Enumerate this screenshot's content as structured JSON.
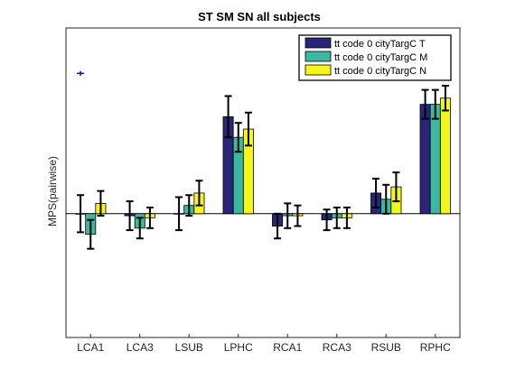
{
  "chart_data": {
    "type": "bar",
    "title": "ST SM SN all subjects",
    "xlabel": "",
    "ylabel": "MPS(pairwise)",
    "categories": [
      "LCA1",
      "LCA3",
      "LSUB",
      "LPHC",
      "RCA1",
      "RCA3",
      "RSUB",
      "RPHC"
    ],
    "ylim": [
      -0.6,
      0.9
    ],
    "grid": false,
    "legend_location": "top-right",
    "series": [
      {
        "name": "tt code 0 cityTargC T",
        "color": "#2b2578",
        "values": [
          0.0,
          -0.01,
          0.0,
          0.47,
          -0.06,
          -0.03,
          0.1,
          0.53
        ],
        "errors": [
          0.09,
          0.07,
          0.08,
          0.1,
          0.06,
          0.05,
          0.07,
          0.07
        ]
      },
      {
        "name": "tt code 0 cityTargC M",
        "color": "#3ab8a0",
        "values": [
          -0.1,
          -0.07,
          0.04,
          0.37,
          -0.01,
          -0.02,
          0.07,
          0.53
        ],
        "errors": [
          0.07,
          0.05,
          0.05,
          0.07,
          0.06,
          0.05,
          0.07,
          0.07
        ]
      },
      {
        "name": "tt code 0 cityTargC N",
        "color": "#f5f51e",
        "values": [
          0.05,
          -0.02,
          0.1,
          0.41,
          -0.01,
          -0.02,
          0.13,
          0.56
        ],
        "errors": [
          0.06,
          0.05,
          0.06,
          0.08,
          0.05,
          0.05,
          0.07,
          0.06
        ]
      }
    ],
    "outlier_markers": [
      {
        "category": "LCA1",
        "series_index": 0,
        "y": 0.68,
        "color": "#0000ff"
      }
    ]
  }
}
